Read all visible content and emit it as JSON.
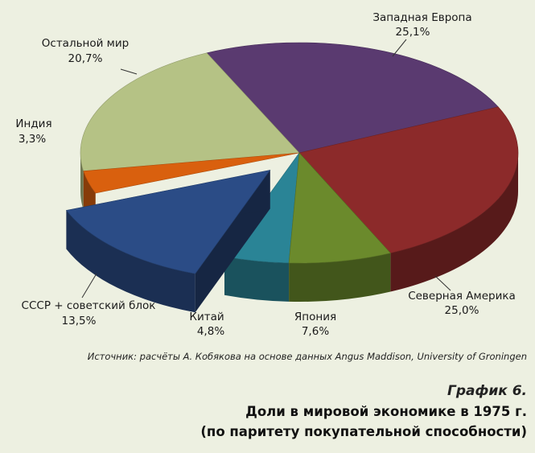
{
  "chart_data": {
    "type": "pie",
    "style": "3d-exploded",
    "slices": [
      {
        "label": "Западная Европа",
        "value": 25.1,
        "value_label": "25,1%",
        "color": "#5a3a70",
        "exploded": false
      },
      {
        "label": "Северная Америка",
        "value": 25.0,
        "value_label": "25,0%",
        "color": "#8c2a2a",
        "exploded": false
      },
      {
        "label": "Япония",
        "value": 7.6,
        "value_label": "7,6%",
        "color": "#6b8a2c",
        "exploded": false
      },
      {
        "label": "Китай",
        "value": 4.8,
        "value_label": "4,8%",
        "color": "#2a8496",
        "exploded": false
      },
      {
        "label": "СССР + советский блок",
        "value": 13.5,
        "value_label": "13,5%",
        "color": "#2b4c86",
        "exploded": true
      },
      {
        "label": "Индия",
        "value": 3.3,
        "value_label": "3,3%",
        "color": "#d9600e",
        "exploded": false
      },
      {
        "label": "Остальной мир",
        "value": 20.7,
        "value_label": "20,7%",
        "color": "#b5c285",
        "exploded": false
      }
    ]
  },
  "source": "Источник: расчёты А. Кобякова на основе данных Angus Maddison, University of Groningen",
  "caption": {
    "number": "График 6.",
    "title_line1": "Доли в мировой экономике в 1975 г.",
    "title_line2": "(по паритету покупательной способности)"
  }
}
